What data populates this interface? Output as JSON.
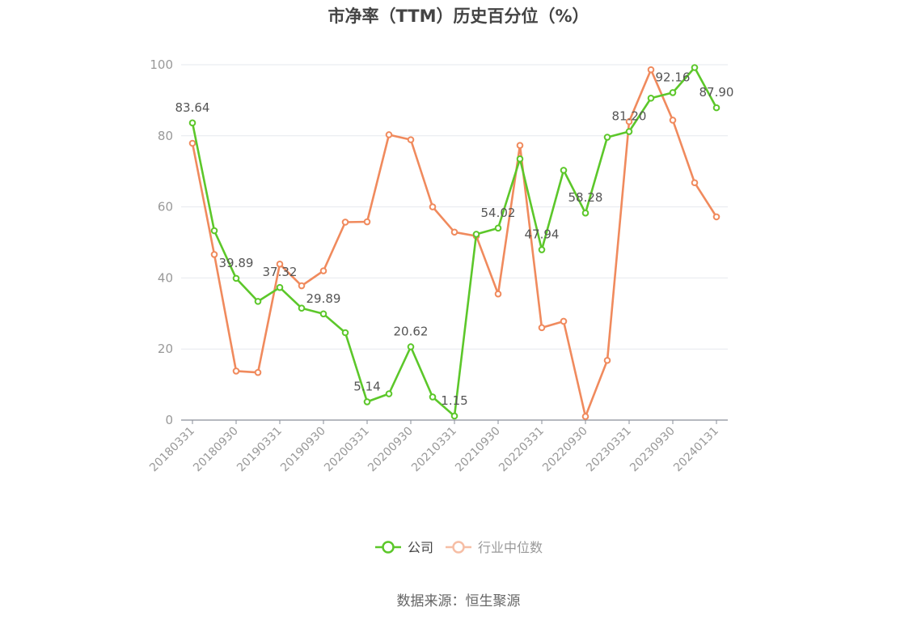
{
  "chart_data": {
    "type": "line",
    "title": "市净率（TTM）历史百分位（%）",
    "xlabel": "",
    "ylabel": "",
    "ylim": [
      0,
      100
    ],
    "yticks": [
      0,
      20,
      40,
      60,
      80,
      100
    ],
    "grid": true,
    "legend_position": "bottom-center",
    "x": [
      "20180331",
      "20180630",
      "20180930",
      "20181231",
      "20190331",
      "20190630",
      "20190930",
      "20191231",
      "20200331",
      "20200630",
      "20200930",
      "20201231",
      "20210331",
      "20210630",
      "20210930",
      "20211231",
      "20220331",
      "20220630",
      "20220930",
      "20221231",
      "20230331",
      "20230630",
      "20230930",
      "20231231",
      "20240131"
    ],
    "xtick_labels": [
      "20180331",
      "20180930",
      "20190331",
      "20190930",
      "20200331",
      "20200930",
      "20210331",
      "20210930",
      "20220331",
      "20220930",
      "20230331",
      "20230930",
      "20240131"
    ],
    "series": [
      {
        "name": "公司",
        "color": "#5cc72a",
        "values": [
          83.64,
          53.3,
          39.89,
          33.4,
          37.32,
          31.5,
          29.89,
          24.6,
          5.14,
          7.4,
          20.62,
          6.5,
          1.15,
          52.3,
          54.02,
          73.5,
          47.94,
          70.3,
          58.28,
          79.6,
          81.2,
          90.6,
          92.16,
          99.2,
          87.9
        ],
        "labels": [
          "83.64",
          "",
          "39.89",
          "",
          "37.32",
          "",
          "29.89",
          "",
          "5.14",
          "",
          "20.62",
          "",
          "1.15",
          "",
          "54.02",
          "",
          "47.94",
          "",
          "58.28",
          "",
          "81.20",
          "",
          "92.16",
          "",
          "87.90"
        ]
      },
      {
        "name": "行业中位数",
        "color": "#f08a5d",
        "values": [
          77.9,
          46.6,
          13.8,
          13.4,
          43.9,
          37.8,
          42.0,
          55.7,
          55.8,
          80.3,
          78.9,
          60.0,
          52.9,
          51.8,
          35.5,
          77.3,
          26.0,
          27.8,
          1.0,
          16.8,
          84.0,
          98.6,
          84.4,
          66.8,
          57.2
        ]
      }
    ]
  },
  "source_text": "数据来源：恒生聚源"
}
